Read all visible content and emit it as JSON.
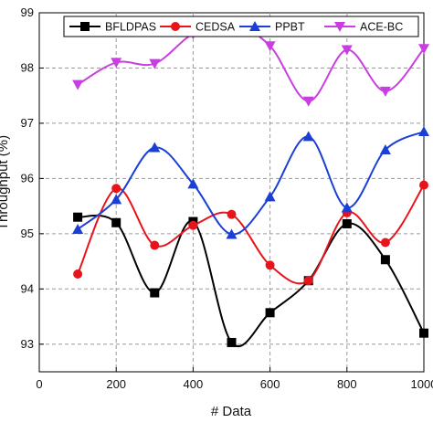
{
  "chart_data": {
    "type": "line",
    "title": "",
    "xlabel": "# Data",
    "ylabel": "Throughput (%)",
    "xlim": [
      0,
      1000
    ],
    "ylim": [
      92.5,
      99
    ],
    "x_ticks": [
      "0",
      "200",
      "400",
      "600",
      "800",
      "1000"
    ],
    "x_tick_values": [
      0,
      200,
      400,
      600,
      800,
      1000
    ],
    "y_ticks": [
      "93",
      "94",
      "95",
      "96",
      "97",
      "98",
      "99"
    ],
    "y_tick_values": [
      93,
      94,
      95,
      96,
      97,
      98,
      99
    ],
    "grid": true,
    "legend_position": "top",
    "x": [
      100,
      200,
      300,
      400,
      500,
      600,
      700,
      800,
      900,
      1000
    ],
    "series": [
      {
        "name": "BFLDPAS",
        "color": "#000000",
        "marker": "square",
        "values": [
          95.3,
          95.2,
          93.93,
          95.22,
          93.03,
          93.57,
          94.15,
          95.18,
          94.53,
          93.2
        ]
      },
      {
        "name": "CEDSA",
        "color": "#e8141c",
        "marker": "circle",
        "values": [
          94.27,
          95.82,
          94.79,
          95.15,
          95.35,
          94.43,
          94.15,
          95.38,
          94.84,
          95.88
        ]
      },
      {
        "name": "PPBT",
        "color": "#1a3fd6",
        "marker": "triangle-up",
        "values": [
          95.08,
          95.62,
          96.56,
          95.9,
          94.99,
          95.67,
          96.76,
          95.47,
          96.52,
          96.85
        ]
      },
      {
        "name": "ACE-BC",
        "color": "#c93ee0",
        "marker": "triangle-down",
        "values": [
          97.7,
          98.1,
          98.08,
          98.62,
          98.8,
          98.4,
          97.4,
          98.33,
          97.58,
          98.35
        ]
      }
    ]
  }
}
